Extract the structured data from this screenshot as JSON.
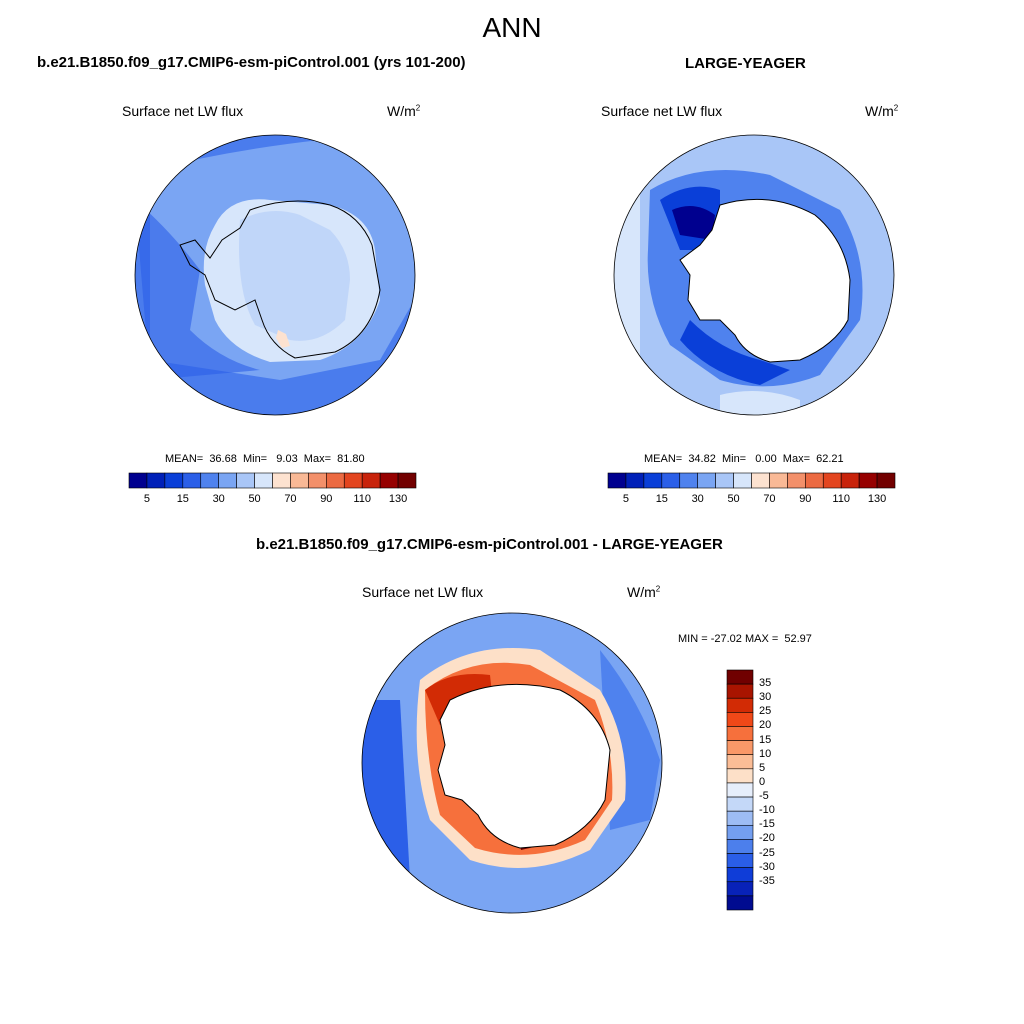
{
  "figure": {
    "title": "ANN",
    "diff_title": "b.e21.B1850.f09_g17.CMIP6-esm-piControl.001 - LARGE-YEAGER"
  },
  "panels": [
    {
      "title": "b.e21.B1850.f09_g17.CMIP6-esm-piControl.001 (yrs 101-200)",
      "variable": "Surface net LW flux",
      "units_base": "W/m",
      "units_exp": "2",
      "stats": "MEAN=  36.68  Min=   9.03  Max=  81.80"
    },
    {
      "title": "LARGE-YEAGER",
      "variable": "Surface net LW flux",
      "units_base": "W/m",
      "units_exp": "2",
      "stats": "MEAN=  34.82  Min=   0.00  Max=  62.21"
    }
  ],
  "diff_panel": {
    "variable": "Surface net LW flux",
    "units_base": "W/m",
    "units_exp": "2",
    "stats": "MIN = -27.02 MAX =  52.97"
  },
  "colorbar_abs": {
    "colors": [
      "#00008f",
      "#0020b8",
      "#0a3fd8",
      "#2b5fe8",
      "#4f82ee",
      "#7aa5f3",
      "#a9c6f7",
      "#d7e6fb",
      "#fde2d0",
      "#f9b996",
      "#f3906a",
      "#ec6a42",
      "#e3451f",
      "#c8230b",
      "#960000",
      "#720000"
    ],
    "labels": [
      "5",
      "15",
      "30",
      "50",
      "70",
      "90",
      "110",
      "130"
    ]
  },
  "colorbar_diff": {
    "colors": [
      "#700000",
      "#a81400",
      "#d22b05",
      "#f04818",
      "#f6703c",
      "#f99868",
      "#fbbd96",
      "#fde0c8",
      "#e6eefb",
      "#c4d8f8",
      "#9dbcf4",
      "#749ff0",
      "#4c7fec",
      "#2a5ee8",
      "#0f3dd8",
      "#0822b8",
      "#000b90"
    ],
    "labels": [
      "35",
      "30",
      "25",
      "20",
      "15",
      "10",
      "5",
      "0",
      "-5",
      "-10",
      "-15",
      "-20",
      "-25",
      "-30",
      "-35"
    ]
  }
}
